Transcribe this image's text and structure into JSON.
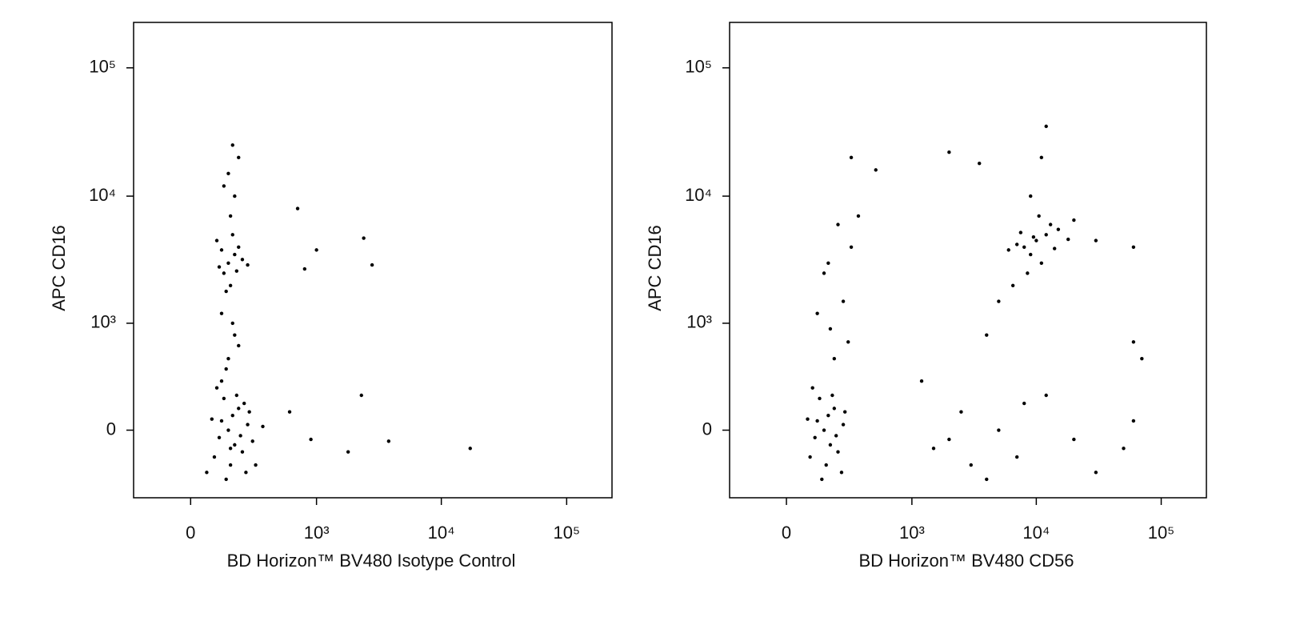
{
  "chart_data": [
    {
      "type": "scatter",
      "scale": "biexponential",
      "color": "#000000",
      "x_label": "BD Horizon™ BV480 Isotype Control",
      "y_label": "APC CD16",
      "xlim": [
        -250,
        230000
      ],
      "ylim": [
        -460,
        226000
      ],
      "xticks": [
        0,
        {
          "value": 1000,
          "label": "10³"
        },
        {
          "value": 10000,
          "label": "10⁴"
        },
        {
          "value": 100000,
          "label": "10⁵"
        }
      ],
      "yticks": [
        0,
        {
          "value": 1000,
          "label": "10³"
        },
        {
          "value": 10000,
          "label": "10⁴"
        },
        {
          "value": 100000,
          "label": "10⁵"
        }
      ],
      "x": [
        150,
        120,
        180,
        200,
        90,
        250,
        160,
        130,
        220,
        170,
        110,
        240,
        190,
        140,
        260,
        80,
        210,
        100,
        230,
        160,
        300,
        60,
        350,
        120,
        280,
        150,
        180,
        120,
        200,
        170,
        140,
        150,
        130,
        180,
        160,
        200,
        110,
        220,
        170,
        140,
        190,
        120,
        250,
        100,
        160,
        180,
        150,
        200,
        130,
        170,
        700,
        2400,
        2800,
        1000,
        800,
        3800,
        17000,
        2300,
        1800,
        900,
        600
      ],
      "y": [
        0,
        50,
        -80,
        120,
        -150,
        30,
        -200,
        180,
        -120,
        80,
        -40,
        -250,
        200,
        -300,
        100,
        60,
        -30,
        250,
        150,
        -100,
        -200,
        -250,
        20,
        300,
        -60,
        500,
        800,
        1200,
        650,
        1000,
        400,
        3000,
        2500,
        3500,
        2000,
        4000,
        2800,
        3200,
        5000,
        1800,
        2600,
        3800,
        2900,
        4500,
        7000,
        10000,
        15000,
        20000,
        12000,
        25000,
        8000,
        4700,
        2900,
        3800,
        2700,
        -60,
        -100,
        200,
        -120,
        -50,
        100
      ]
    },
    {
      "type": "scatter",
      "scale": "biexponential",
      "color": "#000000",
      "x_label": "BD Horizon™ BV480 CD56",
      "y_label": "APC CD16",
      "xlim": [
        -250,
        230000
      ],
      "ylim": [
        -460,
        226000
      ],
      "xticks": [
        0,
        {
          "value": 1000,
          "label": "10³"
        },
        {
          "value": 10000,
          "label": "10⁴"
        },
        {
          "value": 100000,
          "label": "10⁵"
        }
      ],
      "yticks": [
        0,
        {
          "value": 1000,
          "label": "10³"
        },
        {
          "value": 10000,
          "label": "10⁴"
        },
        {
          "value": 100000,
          "label": "10⁵"
        }
      ],
      "x": [
        150,
        120,
        180,
        200,
        90,
        250,
        160,
        130,
        220,
        170,
        110,
        240,
        190,
        140,
        260,
        80,
        210,
        100,
        200,
        180,
        250,
        150,
        300,
        220,
        350,
        120,
        280,
        170,
        10000,
        8000,
        12000,
        9000,
        15000,
        7000,
        11000,
        13000,
        9500,
        6000,
        18000,
        8500,
        10500,
        14000,
        7500,
        9000,
        11000,
        12000,
        5000,
        4000,
        20000,
        6500,
        1500,
        2500,
        3000,
        5000,
        7000,
        12000,
        20000,
        30000,
        50000,
        60000,
        1200,
        4000,
        8000,
        2000,
        70000,
        300,
        500,
        2000,
        3500,
        30000,
        60000,
        60000
      ],
      "y": [
        0,
        50,
        -80,
        120,
        -150,
        30,
        -200,
        180,
        -120,
        80,
        -40,
        -250,
        200,
        -300,
        100,
        60,
        -30,
        250,
        500,
        900,
        1500,
        2500,
        4000,
        6000,
        7000,
        1200,
        700,
        3000,
        4500,
        4000,
        5000,
        3500,
        5500,
        4200,
        3000,
        6000,
        4800,
        3800,
        4600,
        2500,
        7000,
        3900,
        5200,
        10000,
        20000,
        35000,
        1500,
        800,
        6500,
        2000,
        -100,
        100,
        -200,
        0,
        -150,
        200,
        -50,
        -250,
        -100,
        50,
        300,
        -300,
        150,
        -50,
        500,
        20000,
        16000,
        22000,
        18000,
        4500,
        4000,
        700
      ]
    }
  ]
}
